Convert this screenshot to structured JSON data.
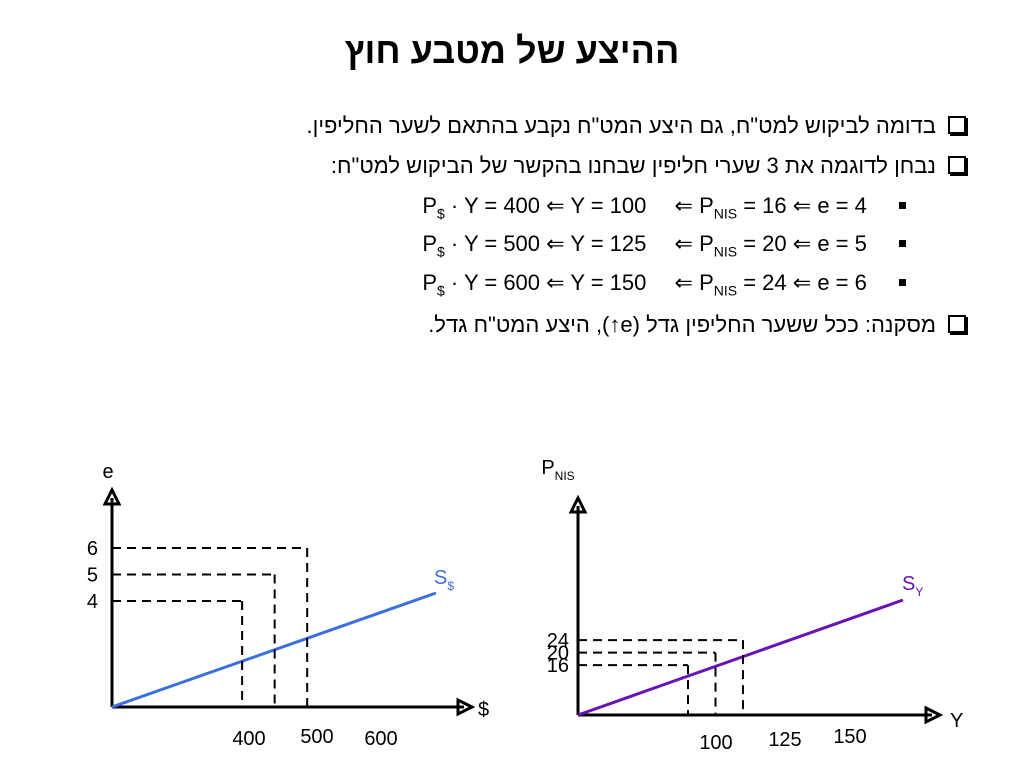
{
  "slide": {
    "title": "ההיצע של מטבע חוץ",
    "bullets": [
      "בדומה לביקוש למט\"ח, גם היצע המט\"ח נקבע בהתאם לשער החליפין.",
      "נבחן לדוגמה את 3 שערי חליפין שבחנו בהקשר של הביקוש למט\"ח:"
    ],
    "conclusion": "מסקנה: ככל ששער החליפין גדל (e↑), היצע המט\"ח גדל.",
    "sub_bullets": [
      {
        "pd": "P",
        "pd_sub": "$",
        "pd_rest": " · Y = 400",
        "y": "Y = 100",
        "pn": "P",
        "pn_sub": "NIS",
        "pn_rest": " = 16",
        "e": "e = 4"
      },
      {
        "pd": "P",
        "pd_sub": "$",
        "pd_rest": " · Y = 500",
        "y": "Y = 125",
        "pn": "P",
        "pn_sub": "NIS",
        "pn_rest": " = 20",
        "e": "e = 5"
      },
      {
        "pd": "P",
        "pd_sub": "$",
        "pd_rest": " · Y = 600",
        "y": "Y = 150",
        "pn": "P",
        "pn_sub": "NIS",
        "pn_rest": " = 24",
        "e": "e = 6"
      }
    ],
    "arrow_glyph": "⇐"
  },
  "colors": {
    "left_line": "#3b6fe0",
    "right_line": "#6a12b8",
    "axes": "#000000"
  },
  "chart_data": [
    {
      "type": "line",
      "ylabel": "e",
      "xlabel": "$",
      "series": [
        {
          "name": "S$",
          "name_main": "S",
          "name_sub": "$",
          "x": [
            400,
            500,
            600
          ],
          "y": [
            4,
            5,
            6
          ]
        }
      ],
      "x_ticks": [
        "400",
        "500",
        "600"
      ],
      "y_ticks": [
        "4",
        "5",
        "6"
      ],
      "xlim": [
        0,
        800
      ],
      "ylim": [
        0,
        10
      ],
      "dashed_guides": true,
      "grid": false
    },
    {
      "type": "line",
      "ylabel": "P",
      "ylabel_sub": "NIS",
      "xlabel": "Y",
      "series": [
        {
          "name": "SY",
          "name_main": "S",
          "name_sub": "Y",
          "x": [
            100,
            125,
            150
          ],
          "y": [
            16,
            20,
            24
          ]
        }
      ],
      "x_ticks": [
        "100",
        "125",
        "150"
      ],
      "y_ticks": [
        "16",
        "20",
        "24"
      ],
      "xlim": [
        0,
        200
      ],
      "ylim": [
        0,
        40
      ],
      "dashed_guides": true,
      "grid": false
    }
  ]
}
